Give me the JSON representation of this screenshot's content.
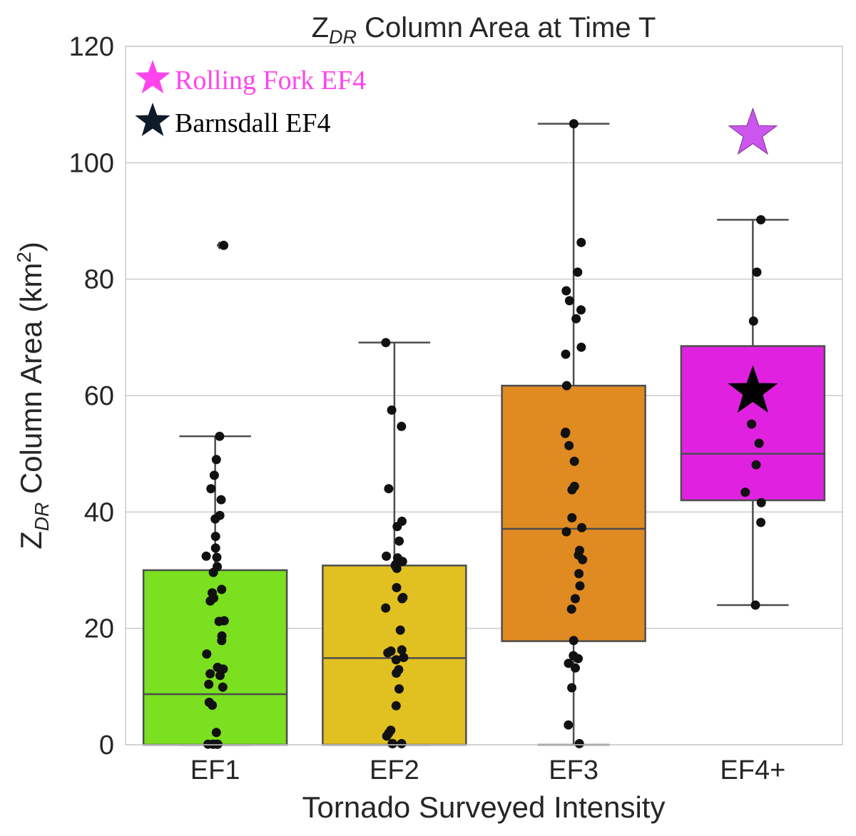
{
  "chart_data": {
    "type": "box",
    "title": {
      "main": "Z",
      "sub": "DR",
      "rest": " Column Area at Time T"
    },
    "xlabel": "Tornado Surveyed Intensity",
    "ylabel": {
      "main": "Z",
      "sub": "DR",
      "rest": " Column Area (km",
      "sup": "2",
      "end": ")"
    },
    "ylim": [
      0,
      120
    ],
    "yticks": [
      0,
      20,
      40,
      60,
      80,
      100,
      120
    ],
    "grid": true,
    "categories": [
      "EF1",
      "EF2",
      "EF3",
      "EF4+"
    ],
    "boxes": [
      {
        "category": "EF1",
        "color": "#7ae020",
        "whisker_low": 0,
        "q1": 0,
        "median": 8.7,
        "q3": 30,
        "whisker_high": 53,
        "outliers": [
          85.8
        ]
      },
      {
        "category": "EF2",
        "color": "#e1c122",
        "whisker_low": 0,
        "q1": 0,
        "median": 14.9,
        "q3": 30.8,
        "whisker_high": 69.1,
        "outliers": []
      },
      {
        "category": "EF3",
        "color": "#e08a22",
        "whisker_low": 0,
        "q1": 17.8,
        "median": 37.1,
        "q3": 61.7,
        "whisker_high": 106.7,
        "outliers": []
      },
      {
        "category": "EF4+",
        "color": "#e022e0",
        "whisker_low": 24,
        "q1": 42,
        "median": 50,
        "q3": 68.5,
        "whisker_high": 90.2,
        "outliers": []
      }
    ],
    "points": [
      {
        "category": "EF1",
        "values": [
          53,
          49,
          46.3,
          44,
          42.1,
          39.4,
          38.8,
          35.8,
          33.8,
          32.4,
          32.2,
          30.6,
          29.6,
          26.7,
          26.1,
          25.2,
          24.7,
          21.3,
          21.2,
          18.7,
          17.9,
          15.6,
          13.3,
          13.0,
          12.2,
          11.9,
          10.4,
          9.9,
          7.3,
          6.8,
          2.1,
          0.1,
          0.1,
          0.1,
          0.1,
          0.1,
          85.8
        ]
      },
      {
        "category": "EF2",
        "values": [
          69.1,
          57.5,
          54.7,
          44,
          38.4,
          37.5,
          35,
          32.4,
          32.1,
          31.5,
          31.0,
          30.8,
          30.3,
          27,
          25.3,
          25.1,
          23.5,
          19.7,
          16.3,
          16.1,
          15.8,
          15.0,
          14.6,
          12.9,
          12.3,
          9.6,
          6.7,
          2.5,
          2.0,
          1.5,
          0.2,
          0.2,
          0.2
        ]
      },
      {
        "category": "EF3",
        "values": [
          106.7,
          86.3,
          81.2,
          78,
          76.3,
          74.7,
          73.2,
          68.3,
          67.1,
          61.7,
          53.7,
          53.5,
          51.4,
          48.7,
          44.4,
          43.8,
          39,
          37.3,
          36.6,
          33.4,
          32.6,
          31.8,
          29.4,
          27.3,
          25.1,
          23.3,
          17.9,
          15.3,
          14.8,
          14.0,
          13.2,
          9.8,
          3.4,
          0.2
        ]
      },
      {
        "category": "EF4+",
        "values": [
          90.2,
          81.2,
          72.8,
          55.1,
          51.8,
          48.1,
          43.4,
          41.6,
          38.2,
          24
        ]
      }
    ],
    "highlights": [
      {
        "label": "Rolling Fork EF4",
        "category": "EF4+",
        "value": 105,
        "color": "#cc55ee",
        "legend_color": "#ff44ee",
        "text_color": "#ff44ee"
      },
      {
        "label": "Barnsdall EF4",
        "category": "EF4+",
        "value": 60.7,
        "color": "#000000",
        "legend_color": "#0d1b2a",
        "text_color": "#000000"
      }
    ]
  }
}
